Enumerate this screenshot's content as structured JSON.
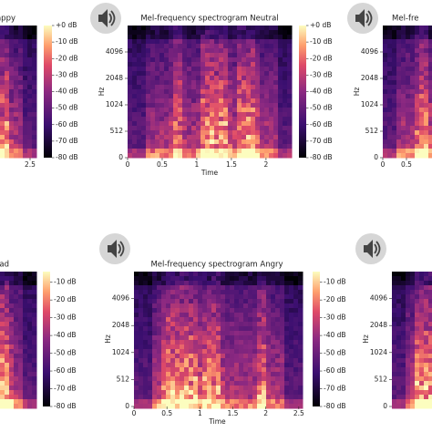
{
  "chart_data": [
    {
      "type": "spectrogram",
      "title": "appy",
      "xlim": [
        0,
        2.6
      ],
      "xticks": [
        2.5
      ],
      "ylim": [
        0,
        8192
      ],
      "yscale": "symlog",
      "linthresh": 512,
      "colorbar": {
        "lim": [
          -80,
          0
        ],
        "ticks": [
          {
            "value": 0,
            "label": "+0 dB"
          },
          {
            "value": -10,
            "label": "-10 dB"
          },
          {
            "value": -20,
            "label": "-20 dB"
          },
          {
            "value": -30,
            "label": "-30 dB"
          },
          {
            "value": -40,
            "label": "-40 dB"
          },
          {
            "value": -50,
            "label": "-50 dB"
          },
          {
            "value": -60,
            "label": "-60 dB"
          },
          {
            "value": -70,
            "label": "-70 dB"
          },
          {
            "value": -80,
            "label": "-80 dB"
          }
        ]
      }
    },
    {
      "type": "spectrogram",
      "title": "Mel-frequency spectrogram Neutral",
      "xlabel": "Time",
      "ylabel": "Hz",
      "xlim": [
        0,
        2.37
      ],
      "xticks": [
        0,
        0.5,
        1,
        1.5,
        2
      ],
      "ylim": [
        0,
        8192
      ],
      "yscale": "symlog",
      "linthresh": 512,
      "yticks": [
        0,
        512,
        1024,
        2048,
        4096
      ],
      "colorbar": {
        "lim": [
          -80,
          0
        ],
        "ticks": [
          {
            "value": 0,
            "label": "+0 dB"
          },
          {
            "value": -10,
            "label": "-10 dB"
          },
          {
            "value": -20,
            "label": "-20 dB"
          },
          {
            "value": -30,
            "label": "-30 dB"
          },
          {
            "value": -40,
            "label": "-40 dB"
          },
          {
            "value": -50,
            "label": "-50 dB"
          },
          {
            "value": -60,
            "label": "-60 dB"
          },
          {
            "value": -70,
            "label": "-70 dB"
          },
          {
            "value": -80,
            "label": "-80 dB"
          }
        ]
      }
    },
    {
      "type": "spectrogram",
      "title": "Mel-fre",
      "ylabel": "Hz",
      "xlim": [
        0,
        2.5
      ],
      "xticks": [
        0,
        0.5
      ],
      "ylim": [
        0,
        8192
      ],
      "yscale": "symlog",
      "linthresh": 512,
      "yticks": [
        0,
        512,
        1024,
        2048,
        4096
      ]
    },
    {
      "type": "spectrogram",
      "title": "ad",
      "xlim": [
        0,
        2.6
      ],
      "ylim": [
        0,
        8192
      ],
      "yscale": "symlog",
      "linthresh": 512,
      "colorbar": {
        "lim": [
          -80,
          -4
        ],
        "ticks": [
          {
            "value": -10,
            "label": "-10 dB"
          },
          {
            "value": -20,
            "label": "-20 dB"
          },
          {
            "value": -30,
            "label": "-30 dB"
          },
          {
            "value": -40,
            "label": "-40 dB"
          },
          {
            "value": -50,
            "label": "-50 dB"
          },
          {
            "value": -60,
            "label": "-60 dB"
          },
          {
            "value": -70,
            "label": "-70 dB"
          },
          {
            "value": -80,
            "label": "-80 dB"
          }
        ]
      }
    },
    {
      "type": "spectrogram",
      "title": "Mel-frequency spectrogram Angry",
      "xlabel": "Time",
      "ylabel": "Hz",
      "xlim": [
        0,
        2.53
      ],
      "xticks": [
        0,
        0.5,
        1,
        1.5,
        2,
        2.5
      ],
      "ylim": [
        0,
        8192
      ],
      "yscale": "symlog",
      "linthresh": 512,
      "yticks": [
        0,
        512,
        1024,
        2048,
        4096
      ],
      "colorbar": {
        "lim": [
          -80,
          -4
        ],
        "ticks": [
          {
            "value": -10,
            "label": "-10 dB"
          },
          {
            "value": -20,
            "label": "-20 dB"
          },
          {
            "value": -30,
            "label": "-30 dB"
          },
          {
            "value": -40,
            "label": "-40 dB"
          },
          {
            "value": -50,
            "label": "-50 dB"
          },
          {
            "value": -60,
            "label": "-60 dB"
          },
          {
            "value": -70,
            "label": "-70 dB"
          },
          {
            "value": -80,
            "label": "-80 dB"
          }
        ]
      }
    },
    {
      "type": "spectrogram",
      "ylabel": "Hz",
      "xlim": [
        0,
        2.5
      ],
      "ylim": [
        0,
        8192
      ],
      "yscale": "symlog",
      "linthresh": 512,
      "yticks": [
        0,
        512,
        1024,
        2048,
        4096
      ]
    }
  ]
}
